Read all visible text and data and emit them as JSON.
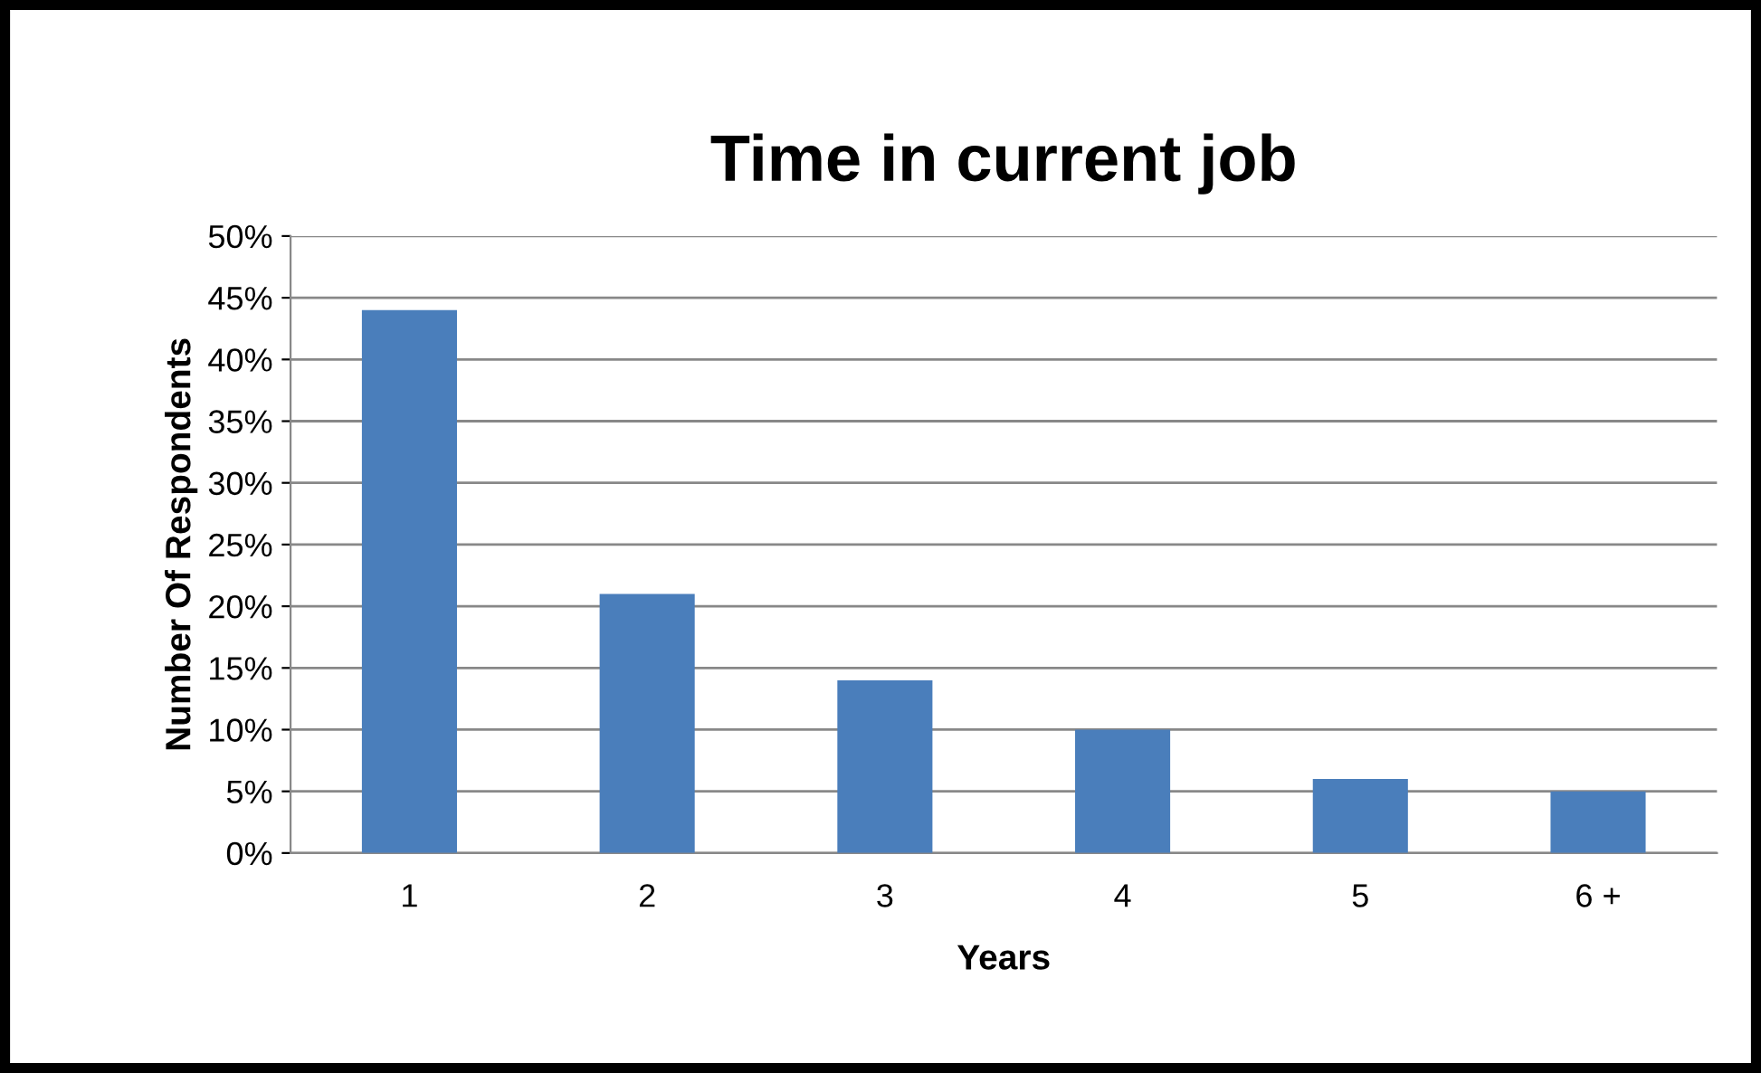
{
  "chart_data": {
    "type": "bar",
    "title": "Time in current job",
    "xlabel": "Years",
    "ylabel": "Number Of Respondents",
    "categories": [
      "1",
      "2",
      "3",
      "4",
      "5",
      "6 +"
    ],
    "values": [
      44,
      21,
      14,
      10,
      6,
      5
    ],
    "color": "#4a7ebb",
    "ylim": [
      0,
      50
    ],
    "yticks": [
      {
        "value": 0,
        "label": "0%"
      },
      {
        "value": 5,
        "label": "5%"
      },
      {
        "value": 10,
        "label": "10%"
      },
      {
        "value": 15,
        "label": "15%"
      },
      {
        "value": 20,
        "label": "20%"
      },
      {
        "value": 25,
        "label": "25%"
      },
      {
        "value": 30,
        "label": "30%"
      },
      {
        "value": 35,
        "label": "35%"
      },
      {
        "value": 40,
        "label": "40%"
      },
      {
        "value": 45,
        "label": "45%"
      },
      {
        "value": 50,
        "label": "50%"
      }
    ],
    "grid": "y"
  }
}
